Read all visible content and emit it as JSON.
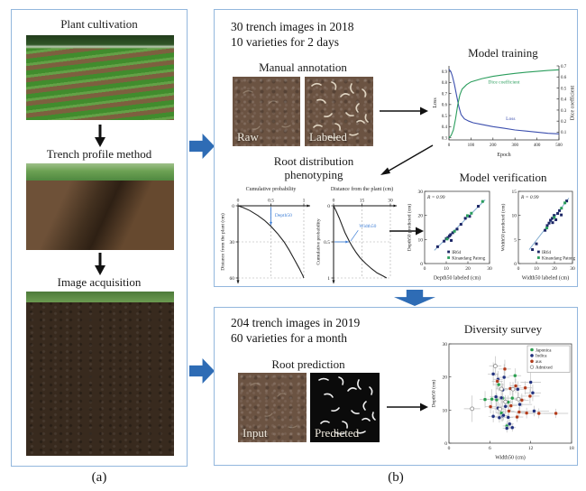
{
  "panel_a": {
    "label": "(a)",
    "step1_title": "Plant cultivation",
    "step2_title": "Trench profile method",
    "step3_title": "Image acquisition"
  },
  "panel_b": {
    "label": "(b)",
    "box_2018": {
      "header_line1": "30 trench images in 2018",
      "header_line2": "10 varieties for 2 days",
      "manual_annotation_title": "Manual annotation",
      "raw_label": "Raw",
      "labeled_label": "Labeled",
      "phenotyping_title_line1": "Root distribution",
      "phenotyping_title_line2": "phenotyping",
      "verification_title": "Model verification"
    },
    "box_2019": {
      "header_line1": "204 trench images in 2019",
      "header_line2": "60 varieties for a month",
      "prediction_title": "Root prediction",
      "input_label": "Input",
      "predicted_label": "Predicted"
    }
  },
  "colors": {
    "box_border": "#93b7dd",
    "flow_arrow": "#2e6cb5",
    "loss_line": "#3c4fae",
    "dice_line": "#2a9d5c",
    "annotation_blue": "#3f7fd6"
  },
  "chart_data": [
    {
      "id": "model_training",
      "type": "line",
      "title": "Model training",
      "xlabel": "Epoch",
      "xlim": [
        0,
        500
      ],
      "xticks": [
        0,
        100,
        200,
        300,
        400,
        500
      ],
      "left_axis": {
        "label": "Loss",
        "lim": [
          0.28,
          0.95
        ],
        "ticks": [
          0.3,
          0.4,
          0.5,
          0.6,
          0.7,
          0.8,
          0.9
        ]
      },
      "right_axis": {
        "label": "Dice coefficient",
        "lim": [
          0.03,
          0.7
        ],
        "ticks": [
          0.1,
          0.2,
          0.3,
          0.4,
          0.5,
          0.6,
          0.7
        ]
      },
      "series": [
        {
          "name": "Loss",
          "axis": "left",
          "color": "#3c4fae",
          "label_at": [
            280,
            0.46
          ],
          "points": [
            [
              0,
              0.92
            ],
            [
              8,
              0.9
            ],
            [
              15,
              0.86
            ],
            [
              25,
              0.78
            ],
            [
              35,
              0.68
            ],
            [
              45,
              0.58
            ],
            [
              55,
              0.51
            ],
            [
              70,
              0.47
            ],
            [
              90,
              0.45
            ],
            [
              110,
              0.435
            ],
            [
              150,
              0.42
            ],
            [
              200,
              0.4
            ],
            [
              250,
              0.385
            ],
            [
              300,
              0.37
            ],
            [
              350,
              0.36
            ],
            [
              400,
              0.35
            ],
            [
              450,
              0.34
            ],
            [
              500,
              0.335
            ]
          ]
        },
        {
          "name": "Dice coefficient",
          "axis": "right",
          "color": "#2a9d5c",
          "label_at": [
            250,
            0.54
          ],
          "points": [
            [
              0,
              0.05
            ],
            [
              10,
              0.07
            ],
            [
              20,
              0.12
            ],
            [
              30,
              0.22
            ],
            [
              40,
              0.35
            ],
            [
              50,
              0.44
            ],
            [
              60,
              0.49
            ],
            [
              80,
              0.53
            ],
            [
              100,
              0.555
            ],
            [
              150,
              0.585
            ],
            [
              200,
              0.605
            ],
            [
              250,
              0.62
            ],
            [
              300,
              0.632
            ],
            [
              350,
              0.642
            ],
            [
              400,
              0.65
            ],
            [
              450,
              0.658
            ],
            [
              500,
              0.665
            ]
          ]
        }
      ]
    },
    {
      "id": "depth50_curve",
      "type": "cumulative",
      "top_xlabel": "Cumulative probability",
      "xlim": [
        0,
        1
      ],
      "xticks": [
        0,
        0.5,
        1
      ],
      "ylabel": "Distance from the plant (cm)",
      "ylim": [
        0,
        60
      ],
      "yticks": [
        0,
        30,
        60
      ],
      "annotation": {
        "text": "Depth50",
        "text_at": [
          0.56,
          9
        ],
        "arrow_from": [
          0.5,
          1
        ],
        "arrow_to": [
          0.5,
          16
        ]
      },
      "points": [
        [
          0,
          0
        ],
        [
          0.08,
          1.5
        ],
        [
          0.18,
          4
        ],
        [
          0.3,
          8
        ],
        [
          0.4,
          12
        ],
        [
          0.5,
          17
        ],
        [
          0.6,
          23
        ],
        [
          0.7,
          30
        ],
        [
          0.78,
          37
        ],
        [
          0.86,
          45
        ],
        [
          0.93,
          52
        ],
        [
          0.985,
          58
        ],
        [
          1,
          60
        ]
      ]
    },
    {
      "id": "width50_curve",
      "type": "cumulative",
      "top_xlabel": "Distance from the plant (cm)",
      "xlim": [
        0,
        30
      ],
      "xticks": [
        0,
        15,
        30
      ],
      "ylabel": "Cumulative probability",
      "ylim": [
        0,
        1
      ],
      "yticks": [
        0,
        0.5,
        1
      ],
      "annotation": {
        "text": "Width50",
        "text_at": [
          13.5,
          0.3
        ],
        "arrow_from": [
          0.5,
          0.5
        ],
        "arrow_to": [
          8,
          0.5
        ],
        "pointer_from": [
          13,
          0.34
        ],
        "pointer_to": [
          9,
          0.49
        ]
      },
      "points": [
        [
          0,
          0
        ],
        [
          1.5,
          0.08
        ],
        [
          3,
          0.17
        ],
        [
          4.5,
          0.27
        ],
        [
          6,
          0.37
        ],
        [
          7.5,
          0.45
        ],
        [
          8.5,
          0.5
        ],
        [
          10,
          0.57
        ],
        [
          12,
          0.65
        ],
        [
          14,
          0.72
        ],
        [
          17,
          0.8
        ],
        [
          20,
          0.87
        ],
        [
          23,
          0.93
        ],
        [
          26,
          0.97
        ],
        [
          28,
          1
        ]
      ]
    },
    {
      "id": "verify_depth",
      "type": "scatter",
      "r_label": "R = 0.99",
      "xlabel": "Depth50 labeled (cm)",
      "ylabel": "Depth50 predicted (cm)",
      "xlim": [
        0,
        30
      ],
      "ylim": [
        0,
        30
      ],
      "xticks": [
        0,
        10,
        20,
        30
      ],
      "yticks": [
        0,
        10,
        20,
        30
      ],
      "marker": "square",
      "fit_line": {
        "from": [
          4.5,
          5.5
        ],
        "to": [
          28,
          26.5
        ]
      },
      "legend": {
        "pos": "inside-bottom",
        "box": false
      },
      "series": [
        {
          "name": "IR64",
          "color": "#1c2666",
          "points": [
            [
              6,
              7
            ],
            [
              9,
              9.3
            ],
            [
              10,
              10.4
            ],
            [
              10.8,
              10.8
            ],
            [
              11.5,
              11.5
            ],
            [
              12.3,
              9.6
            ],
            [
              12,
              12
            ],
            [
              13,
              12.8
            ],
            [
              15,
              14.3
            ],
            [
              16.8,
              16.3
            ],
            [
              18.8,
              18.8
            ],
            [
              20.8,
              19.6
            ],
            [
              24.8,
              23.8
            ]
          ]
        },
        {
          "name": "Kinandang Patong",
          "color": "#2a9d5c",
          "points": [
            [
              10.4,
              10.2
            ],
            [
              13.8,
              13.4
            ],
            [
              19.8,
              19.9
            ],
            [
              21.6,
              20.9
            ],
            [
              26.8,
              25.8
            ]
          ]
        }
      ]
    },
    {
      "id": "verify_width",
      "type": "scatter",
      "r_label": "R = 0.99",
      "xlabel": "Width50 labeled (cm)",
      "ylabel": "Width50 predicted (cm)",
      "xlim": [
        0,
        30
      ],
      "ylim": [
        0,
        15
      ],
      "xticks": [
        0,
        10,
        20,
        30
      ],
      "yticks": [
        0,
        5,
        10,
        15
      ],
      "marker": "square",
      "fit_line": {
        "from": [
          6,
          2.9
        ],
        "to": [
          28,
          13.6
        ]
      },
      "legend": {
        "pos": "inside-bottom",
        "box": false
      },
      "series": [
        {
          "name": "IR64",
          "color": "#1c2666",
          "points": [
            [
              7.8,
              2.9
            ],
            [
              10,
              4.1
            ],
            [
              14.8,
              6.9
            ],
            [
              16,
              7.9
            ],
            [
              17,
              8.4
            ],
            [
              17.8,
              9
            ],
            [
              18.8,
              9.4
            ],
            [
              19,
              8.5
            ],
            [
              19.8,
              10
            ],
            [
              20.8,
              9.1
            ],
            [
              21.8,
              10.4
            ],
            [
              22.8,
              11
            ],
            [
              23.8,
              10.1
            ],
            [
              26.8,
              13
            ]
          ]
        },
        {
          "name": "Kinandang Patong",
          "color": "#2a9d5c",
          "points": [
            [
              15.8,
              7.4
            ],
            [
              19.9,
              9.6
            ],
            [
              23.9,
              11.5
            ],
            [
              25.8,
              12.6
            ]
          ]
        }
      ]
    },
    {
      "id": "diversity",
      "type": "scatter",
      "title": "Diversity survey",
      "xlabel": "Width50 (cm)",
      "ylabel": "Depth50 (cm)",
      "xlim": [
        0,
        18
      ],
      "ylim": [
        0,
        30
      ],
      "xticks": [
        0,
        6,
        12,
        18
      ],
      "yticks": [
        0,
        10,
        20,
        30
      ],
      "marker": "circle",
      "error_bars": true,
      "legend": {
        "pos": "top-right",
        "box": true
      },
      "series": [
        {
          "name": "Japonica",
          "color": "#2a9d4e",
          "points": [
            [
              5.3,
              13.2,
              0.8,
              2.5
            ],
            [
              6.3,
              13.3,
              1.2,
              3
            ],
            [
              7,
              13.1,
              0.8,
              2
            ],
            [
              7.9,
              13.6,
              1,
              2.5
            ],
            [
              9.7,
              20.4,
              0.9,
              2.2
            ],
            [
              8.7,
              12.4,
              0.7,
              2
            ],
            [
              7.7,
              9.1,
              0.8,
              2.5
            ],
            [
              8.5,
              5.2,
              0.6,
              1.5
            ],
            [
              9.3,
              13.6,
              1.5,
              2
            ],
            [
              7.3,
              17.7,
              0.8,
              2
            ]
          ]
        },
        {
          "name": "Indica",
          "color": "#20307d",
          "points": [
            [
              6.5,
              20.9,
              0.8,
              3.5
            ],
            [
              7.2,
              19.3,
              0.7,
              2.5
            ],
            [
              8.1,
              19.9,
              0.8,
              4
            ],
            [
              12,
              18.4,
              1.5,
              3
            ],
            [
              12.3,
              15.2,
              1.2,
              2.5
            ],
            [
              7.9,
              16.1,
              0.7,
              2
            ],
            [
              6.9,
              14,
              0.9,
              5
            ],
            [
              7.7,
              13.7,
              0.6,
              2
            ],
            [
              8.3,
              11.1,
              0.8,
              2.2
            ],
            [
              7.2,
              10.6,
              0.9,
              2
            ],
            [
              6.5,
              8.1,
              0.7,
              1.8
            ],
            [
              7.4,
              7.7,
              0.6,
              1.5
            ],
            [
              7.9,
              8.2,
              0.8,
              1.6
            ],
            [
              8.7,
              7.8,
              0.7,
              2
            ],
            [
              8.9,
              5.8,
              0.6,
              1.4
            ],
            [
              9.3,
              4.7,
              0.5,
              1.2
            ],
            [
              8.5,
              4.5,
              0.6,
              1.3
            ],
            [
              10.4,
              11.7,
              1.8,
              2
            ],
            [
              12.5,
              9.7,
              2.2,
              1.6
            ],
            [
              10.1,
              16.3,
              1,
              2.4
            ],
            [
              8,
              8.4,
              0.6,
              1.5
            ]
          ]
        },
        {
          "name": "aus",
          "color": "#b03a1a",
          "points": [
            [
              8.2,
              22.4,
              0.9,
              2.8
            ],
            [
              9.8,
              17.3,
              0.8,
              2.2
            ],
            [
              11.2,
              16.7,
              1,
              2
            ],
            [
              11.9,
              14.2,
              1.4,
              2.2
            ],
            [
              10.7,
              13,
              1,
              2
            ],
            [
              9.1,
              11.3,
              0.9,
              1.8
            ],
            [
              10.3,
              9.4,
              1.2,
              1.5
            ],
            [
              11.4,
              9.1,
              1.3,
              1.6
            ],
            [
              13.2,
              9,
              2.5,
              1.5
            ],
            [
              15.7,
              9,
              1.8,
              1.4
            ],
            [
              6.1,
              11,
              0.8,
              2
            ],
            [
              7.1,
              18.7,
              0.8,
              2.4
            ],
            [
              9,
              16.5,
              0.9,
              2
            ],
            [
              8.8,
              9.7,
              0.8,
              1.6
            ],
            [
              10,
              7.9,
              0.9,
              1.5
            ]
          ]
        },
        {
          "name": "Admixed",
          "color": "open",
          "points": [
            [
              3.4,
              10.4,
              1.2,
              4
            ],
            [
              6.8,
              23.3,
              0.9,
              3
            ],
            [
              7.7,
              16.4,
              0.8,
              2.5
            ],
            [
              9.4,
              16.3,
              0.9,
              2.2
            ],
            [
              8.3,
              12.5,
              0.7,
              2
            ],
            [
              7.5,
              10.3,
              0.8,
              1.8
            ],
            [
              10.2,
              13.3,
              1,
              2
            ]
          ]
        }
      ]
    }
  ]
}
